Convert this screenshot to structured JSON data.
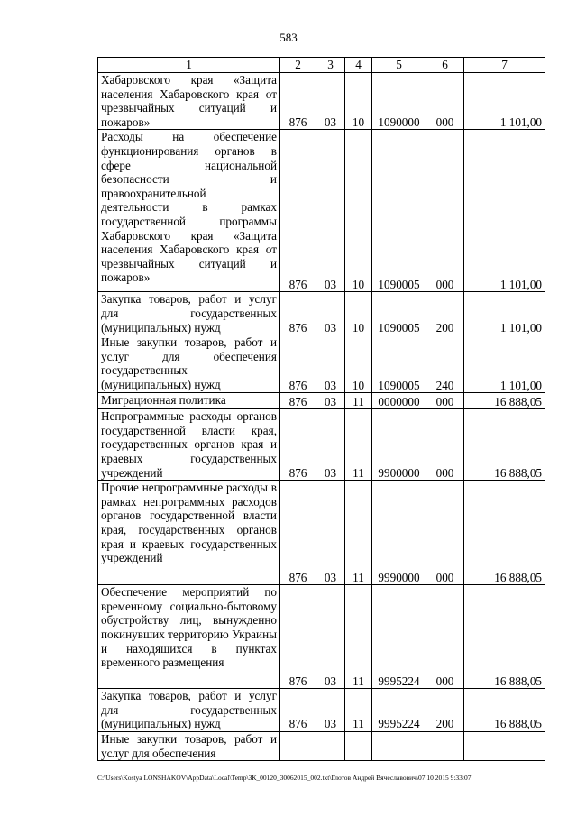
{
  "page_number": "583",
  "table": {
    "headers": [
      "1",
      "2",
      "3",
      "4",
      "5",
      "6",
      "7"
    ],
    "rows": [
      {
        "name": "Хабаровского края «Защита населения Хабаровского края от чрезвычайных ситуаций и пожаров»",
        "c2": "876",
        "c3": "03",
        "c4": "10",
        "c5": "1090000",
        "c6": "000",
        "c7": "1 101,00"
      },
      {
        "name": "Расходы на обеспечение функционирования органов в сфере национальной безопасности и правоохранительной деятельности в рамках государственной программы Хабаровского края «Защита населения Хабаровского края от чрезвычайных ситуаций и пожаров»",
        "c2": "876",
        "c3": "03",
        "c4": "10",
        "c5": "1090005",
        "c6": "000",
        "c7": "1 101,00"
      },
      {
        "name": "Закупка товаров, работ и услуг для государственных (муниципальных) нужд",
        "c2": "876",
        "c3": "03",
        "c4": "10",
        "c5": "1090005",
        "c6": "200",
        "c7": "1 101,00"
      },
      {
        "name": "Иные закупки товаров, работ и услуг для обеспечения государственных (муниципальных) нужд",
        "c2": "876",
        "c3": "03",
        "c4": "10",
        "c5": "1090005",
        "c6": "240",
        "c7": "1 101,00"
      },
      {
        "name": "Миграционная политика",
        "c2": "876",
        "c3": "03",
        "c4": "11",
        "c5": "0000000",
        "c6": "000",
        "c7": "16 888,05"
      },
      {
        "name": "Непрограммные расходы органов государственной власти края, государственных органов края и краевых государственных учреждений",
        "c2": "876",
        "c3": "03",
        "c4": "11",
        "c5": "9900000",
        "c6": "000",
        "c7": "16 888,05"
      },
      {
        "name": "Прочие непрограммные расходы в рамках непрограммных расходов органов государственной власти края, государственных органов края и краевых государственных учреждений",
        "c2": "876",
        "c3": "03",
        "c4": "11",
        "c5": "9990000",
        "c6": "000",
        "c7": "16 888,05"
      },
      {
        "name": "Обеспечение мероприятий по временному социально-бытовому обустройству лиц, вынужденно покинувших территорию Украины и находящихся в пунктах временного размещения",
        "c2": "876",
        "c3": "03",
        "c4": "11",
        "c5": "9995224",
        "c6": "000",
        "c7": "16 888,05"
      },
      {
        "name": "Закупка товаров, работ и услуг для государственных (муниципальных) нужд",
        "c2": "876",
        "c3": "03",
        "c4": "11",
        "c5": "9995224",
        "c6": "200",
        "c7": "16 888,05"
      },
      {
        "name": "Иные закупки товаров, работ и услуг для обеспечения",
        "c2": "",
        "c3": "",
        "c4": "",
        "c5": "",
        "c6": "",
        "c7": ""
      }
    ]
  },
  "footer": "C:\\Users\\Kostya LONSHAKOV\\AppData\\Local\\Temp\\ЗК_00120_30062015_002.txt\\Глотов Андрей Вячеславович\\07.10 2015 9:33:07"
}
